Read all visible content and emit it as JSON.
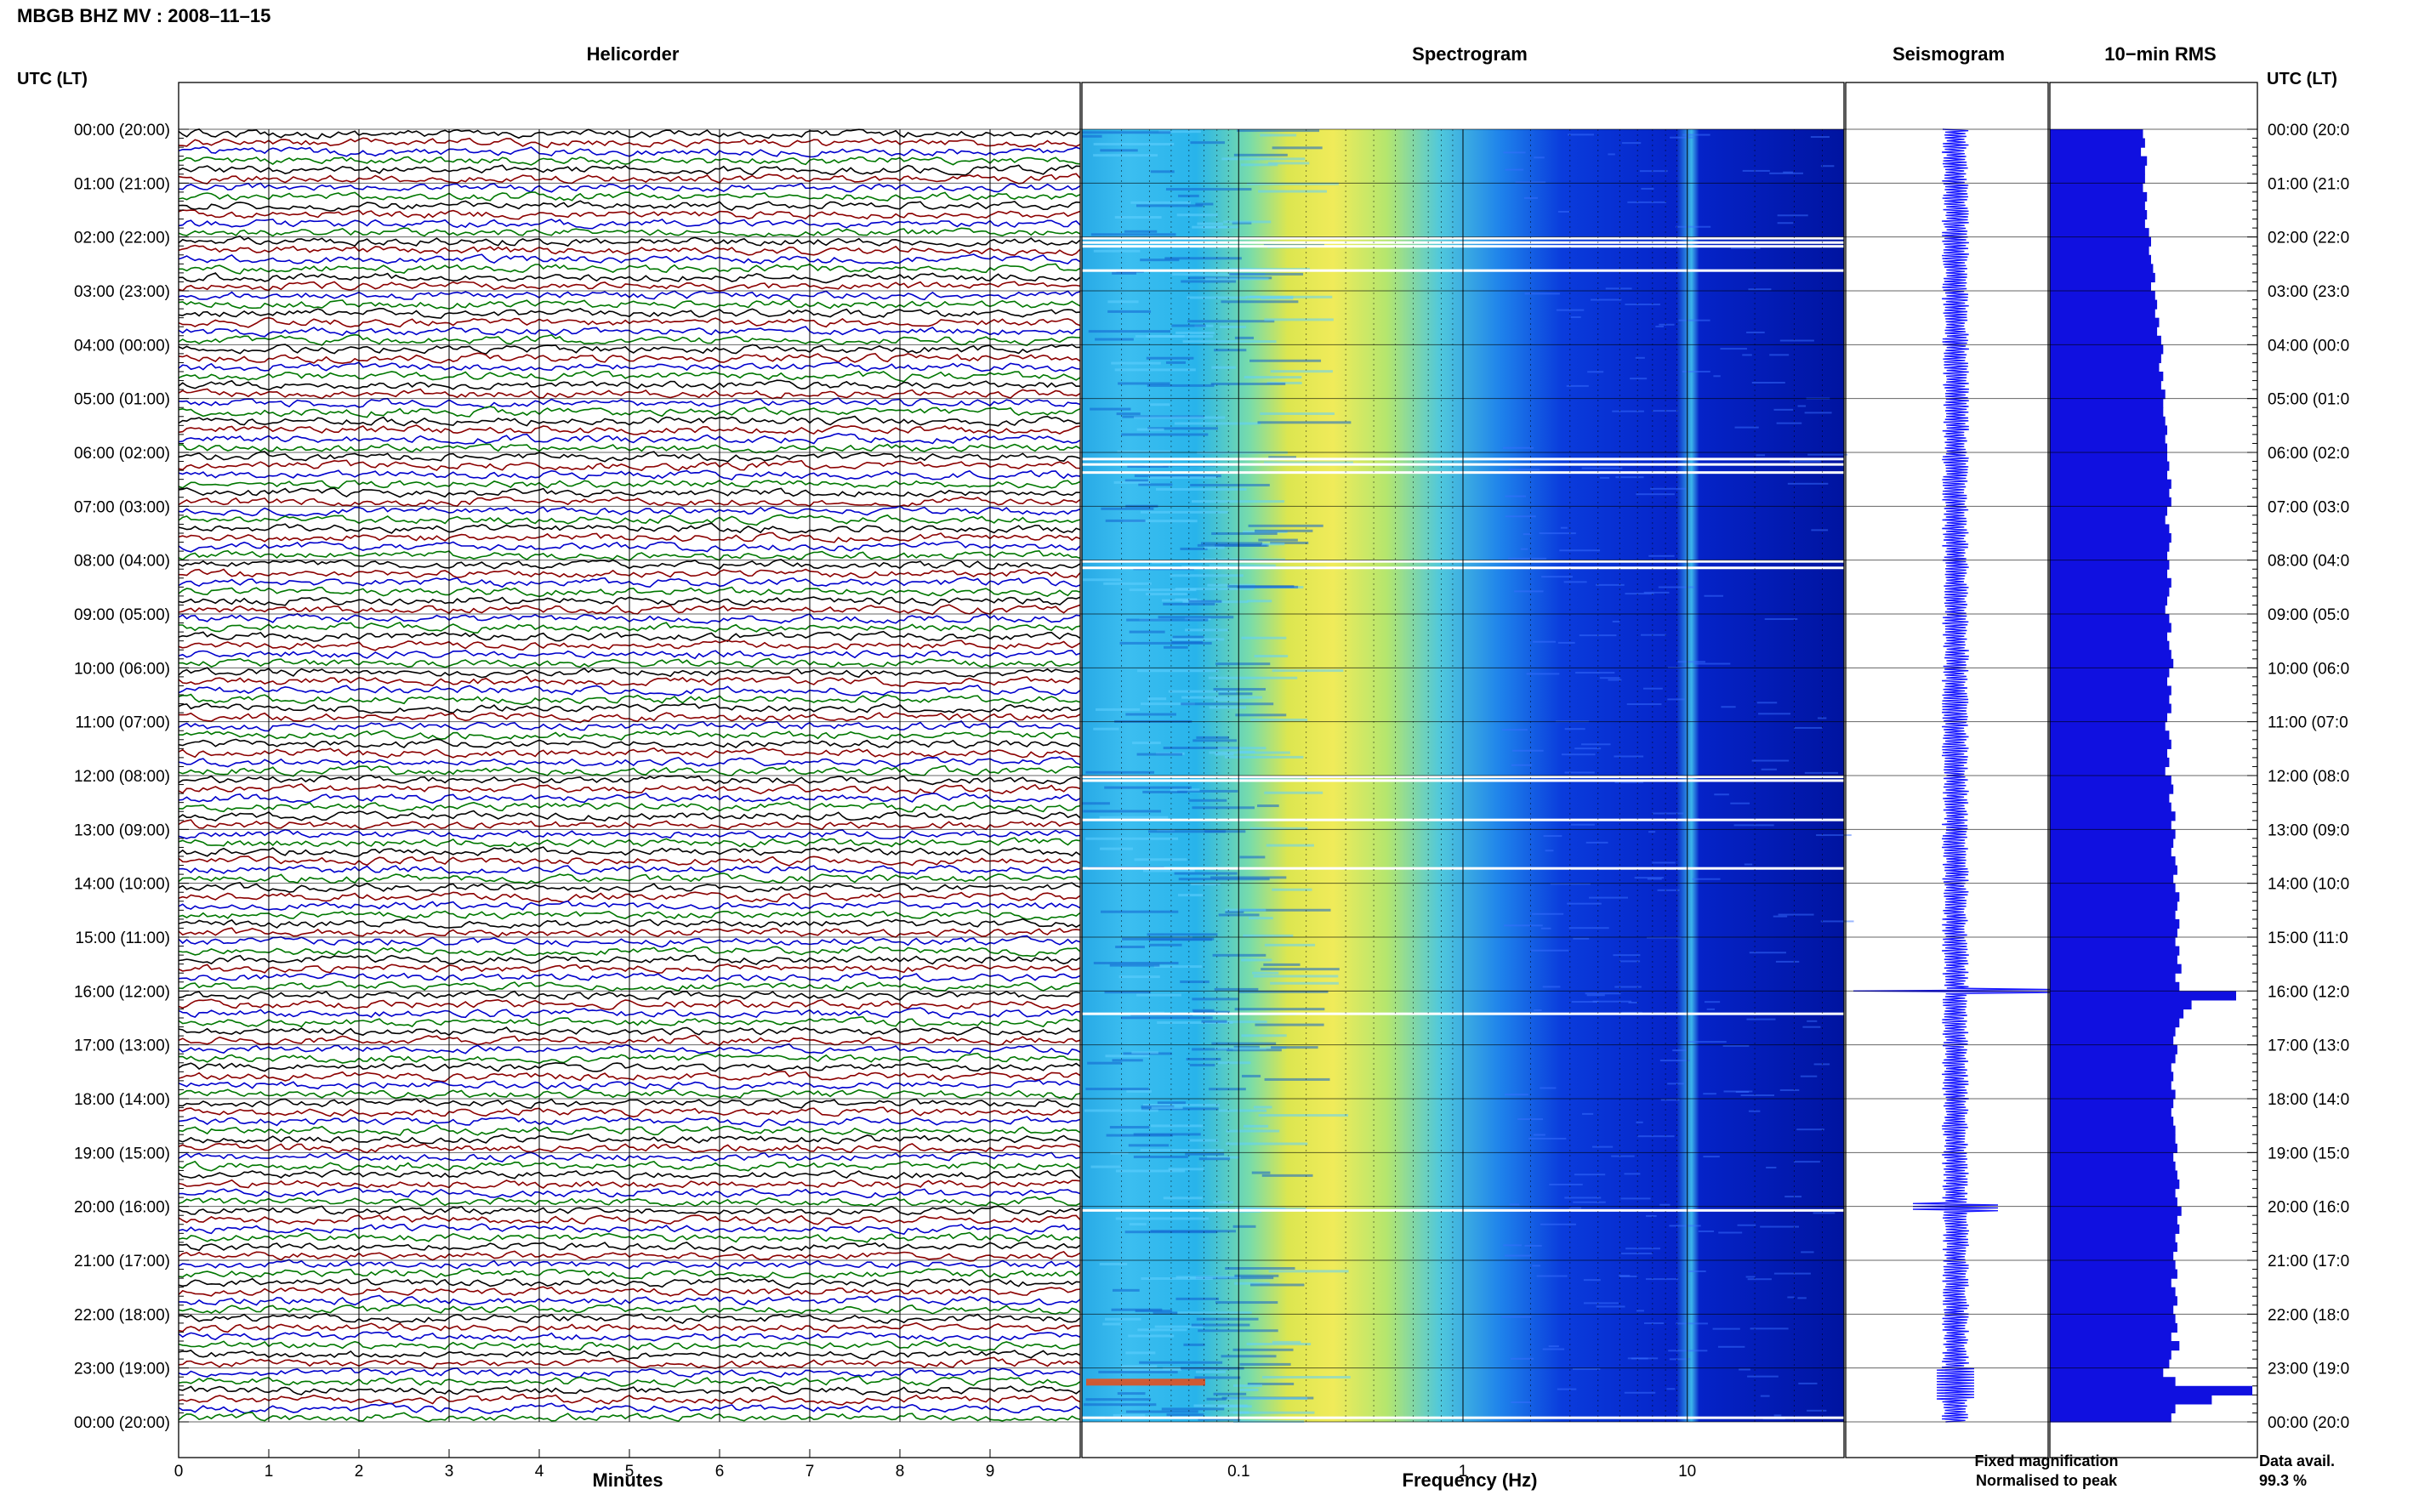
{
  "station_title": "MBGB BHZ MV : 2008–11–15",
  "left_axis_title": "UTC (LT)",
  "right_axis_title": "UTC (LT)",
  "panels": {
    "helicorder": "Helicorder",
    "spectrogram": "Spectrogram",
    "seismogram": "Seismogram",
    "rms": "10−min RMS"
  },
  "helicorder_xlabel": "Minutes",
  "spectrogram_xlabel": "Frequency (Hz)",
  "legend": {
    "fixed": "Fixed magnification",
    "fixed_color": "#0000ee",
    "normalised": "Normalised to peak",
    "normalised_color": "#ee0000"
  },
  "data_avail_label": "Data avail.",
  "data_avail_value": "99.3 %",
  "colors": {
    "trace_cycle": [
      "#000000",
      "#8b0000",
      "#0000cc",
      "#007700"
    ],
    "rms_fill": "#1010e0",
    "seismogram": "#1a1aff"
  },
  "chart_data": {
    "type": "heatmap",
    "time_labels_left": [
      "00:00 (20:00)",
      "01:00 (21:00)",
      "02:00 (22:00)",
      "03:00 (23:00)",
      "04:00 (00:00)",
      "05:00 (01:00)",
      "06:00 (02:00)",
      "07:00 (03:00)",
      "08:00 (04:00)",
      "09:00 (05:00)",
      "10:00 (06:00)",
      "11:00 (07:00)",
      "12:00 (08:00)",
      "13:00 (09:00)",
      "14:00 (10:00)",
      "15:00 (11:00)",
      "16:00 (12:00)",
      "17:00 (13:00)",
      "18:00 (14:00)",
      "19:00 (15:00)",
      "20:00 (16:00)",
      "21:00 (17:00)",
      "22:00 (18:00)",
      "23:00 (19:00)",
      "00:00 (20:00)"
    ],
    "time_labels_right": [
      "00:00 (20:0",
      "01:00 (21:0",
      "02:00 (22:0",
      "03:00 (23:0",
      "04:00 (00:0",
      "05:00 (01:0",
      "06:00 (02:0",
      "07:00 (03:0",
      "08:00 (04:0",
      "09:00 (05:0",
      "10:00 (06:0",
      "11:00 (07:0",
      "12:00 (08:0",
      "13:00 (09:0",
      "14:00 (10:0",
      "15:00 (11:0",
      "16:00 (12:0",
      "17:00 (13:0",
      "18:00 (14:0",
      "19:00 (15:0",
      "20:00 (16:0",
      "21:00 (17:0",
      "22:00 (18:0",
      "23:00 (19:0",
      "00:00 (20:0"
    ],
    "minute_ticks": [
      "0",
      "1",
      "2",
      "3",
      "4",
      "5",
      "6",
      "7",
      "8",
      "9"
    ],
    "minute_range": [
      0,
      10
    ],
    "lines_per_hour": 6,
    "frequency_ticks": [
      {
        "label": "0.1",
        "value": 0.1
      },
      {
        "label": "1",
        "value": 1
      },
      {
        "label": "10",
        "value": 10
      }
    ],
    "frequency_range": [
      0.02,
      50
    ],
    "frequency_scale": "log",
    "rms_10min_relative": [
      0.46,
      0.47,
      0.45,
      0.48,
      0.47,
      0.47,
      0.46,
      0.48,
      0.47,
      0.48,
      0.47,
      0.49,
      0.5,
      0.49,
      0.5,
      0.51,
      0.52,
      0.5,
      0.52,
      0.53,
      0.52,
      0.54,
      0.53,
      0.55,
      0.56,
      0.55,
      0.54,
      0.56,
      0.55,
      0.57,
      0.56,
      0.56,
      0.57,
      0.58,
      0.57,
      0.58,
      0.58,
      0.59,
      0.58,
      0.6,
      0.59,
      0.6,
      0.58,
      0.57,
      0.59,
      0.6,
      0.59,
      0.58,
      0.59,
      0.58,
      0.6,
      0.59,
      0.58,
      0.57,
      0.59,
      0.6,
      0.58,
      0.59,
      0.6,
      0.61,
      0.59,
      0.58,
      0.6,
      0.59,
      0.6,
      0.58,
      0.57,
      0.59,
      0.6,
      0.58,
      0.59,
      0.57,
      0.6,
      0.61,
      0.59,
      0.6,
      0.62,
      0.6,
      0.62,
      0.61,
      0.6,
      0.62,
      0.63,
      0.61,
      0.62,
      0.64,
      0.63,
      0.62,
      0.64,
      0.63,
      0.62,
      0.64,
      0.63,
      0.65,
      0.62,
      0.64,
      0.92,
      0.7,
      0.66,
      0.64,
      0.62,
      0.61,
      0.63,
      0.62,
      0.6,
      0.61,
      0.6,
      0.62,
      0.61,
      0.6,
      0.61,
      0.62,
      0.62,
      0.63,
      0.61,
      0.62,
      0.63,
      0.64,
      0.62,
      0.63,
      0.65,
      0.63,
      0.64,
      0.62,
      0.63,
      0.61,
      0.62,
      0.63,
      0.6,
      0.62,
      0.63,
      0.61,
      0.62,
      0.63,
      0.6,
      0.64,
      0.6,
      0.59,
      0.56,
      0.62,
      1.0,
      0.8,
      0.62,
      0.6
    ]
  }
}
